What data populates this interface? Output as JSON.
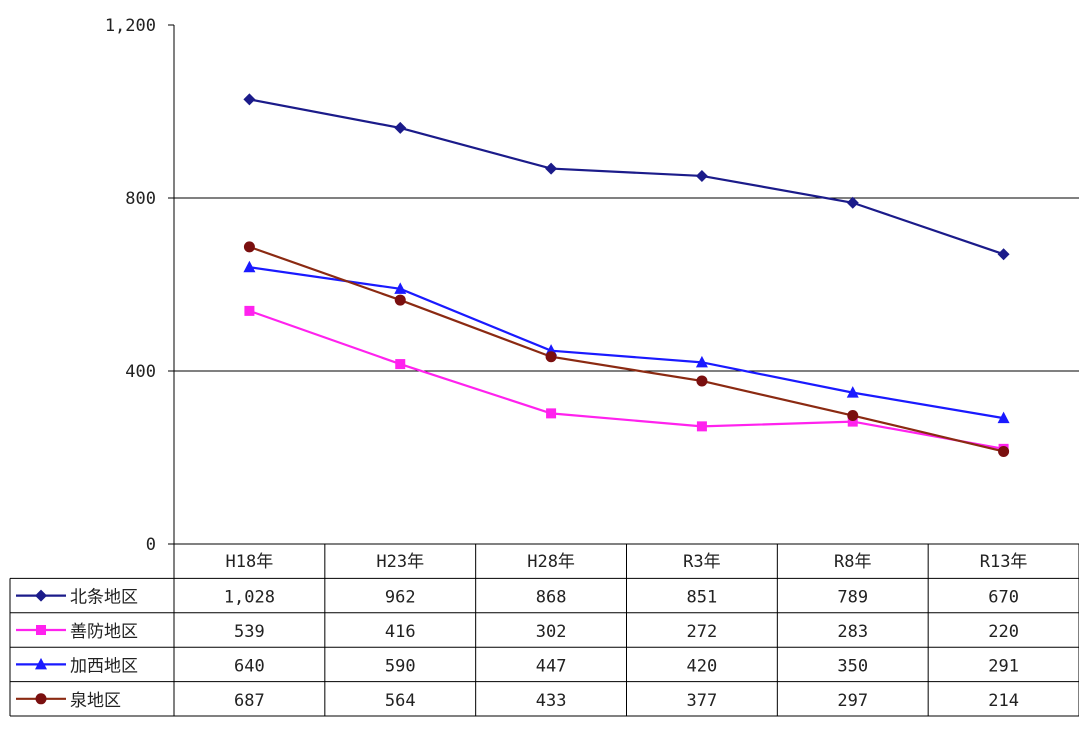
{
  "chart_data": {
    "type": "line",
    "categories": [
      "H18年",
      "H23年",
      "H28年",
      "R3年",
      "R8年",
      "R13年"
    ],
    "ylim": [
      0,
      1200
    ],
    "yticks": [
      0,
      400,
      800,
      1200
    ],
    "ytick_labels": [
      "0",
      "400",
      "800",
      "1,200"
    ],
    "grid": "horizontal at 400 and 800",
    "legend": "embedded in data table rows below chart",
    "series": [
      {
        "name": "北条地区",
        "values": [
          1028,
          962,
          868,
          851,
          789,
          670
        ],
        "labels": [
          "1,028",
          "962",
          "868",
          "851",
          "789",
          "670"
        ],
        "color": "#1b1b8a",
        "marker": "diamond"
      },
      {
        "name": "善防地区",
        "values": [
          539,
          416,
          302,
          272,
          283,
          220
        ],
        "labels": [
          "539",
          "416",
          "302",
          "272",
          "283",
          "220"
        ],
        "color": "#ff22ee",
        "marker": "square"
      },
      {
        "name": "加西地区",
        "values": [
          640,
          590,
          447,
          420,
          350,
          291
        ],
        "labels": [
          "640",
          "590",
          "447",
          "420",
          "350",
          "291"
        ],
        "color": "#1a1aff",
        "marker": "triangle"
      },
      {
        "name": "泉地区",
        "values": [
          687,
          564,
          433,
          377,
          297,
          214
        ],
        "labels": [
          "687",
          "564",
          "433",
          "377",
          "297",
          "214"
        ],
        "color": "#8b2a12",
        "marker": "circle",
        "marker_color": "#7a0f0f"
      }
    ]
  }
}
